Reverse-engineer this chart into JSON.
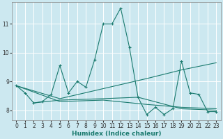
{
  "title": "",
  "xlabel": "Humidex (Indice chaleur)",
  "bg_color": "#cce8f0",
  "grid_color": "#ffffff",
  "line_color": "#1a7a6e",
  "xlim": [
    -0.5,
    23.5
  ],
  "ylim": [
    7.65,
    11.75
  ],
  "yticks": [
    8,
    9,
    10,
    11
  ],
  "xticks": [
    0,
    1,
    2,
    3,
    4,
    5,
    6,
    7,
    8,
    9,
    10,
    11,
    12,
    13,
    14,
    15,
    16,
    17,
    18,
    19,
    20,
    21,
    22,
    23
  ],
  "series1": [
    [
      0,
      8.85
    ],
    [
      1,
      8.6
    ],
    [
      2,
      8.25
    ],
    [
      3,
      8.3
    ],
    [
      4,
      8.55
    ],
    [
      5,
      9.55
    ],
    [
      6,
      8.6
    ],
    [
      7,
      9.0
    ],
    [
      8,
      8.8
    ],
    [
      9,
      9.75
    ],
    [
      10,
      11.0
    ],
    [
      11,
      11.0
    ],
    [
      12,
      11.55
    ],
    [
      13,
      10.2
    ],
    [
      14,
      8.45
    ],
    [
      15,
      7.85
    ],
    [
      16,
      8.1
    ],
    [
      17,
      7.85
    ],
    [
      18,
      8.05
    ],
    [
      19,
      9.7
    ],
    [
      20,
      8.6
    ],
    [
      21,
      8.55
    ],
    [
      22,
      7.95
    ],
    [
      23,
      7.95
    ]
  ],
  "series2": [
    [
      0,
      8.85
    ],
    [
      5,
      8.4
    ],
    [
      10,
      8.75
    ],
    [
      15,
      9.1
    ],
    [
      19,
      9.4
    ],
    [
      23,
      9.65
    ]
  ],
  "series3": [
    [
      0,
      8.85
    ],
    [
      5,
      8.3
    ],
    [
      10,
      8.35
    ],
    [
      15,
      8.2
    ],
    [
      19,
      8.1
    ],
    [
      23,
      8.05
    ]
  ],
  "series4": [
    [
      2,
      8.25
    ],
    [
      5,
      8.35
    ],
    [
      10,
      8.4
    ],
    [
      14,
      8.45
    ],
    [
      19,
      8.05
    ],
    [
      23,
      8.0
    ]
  ]
}
